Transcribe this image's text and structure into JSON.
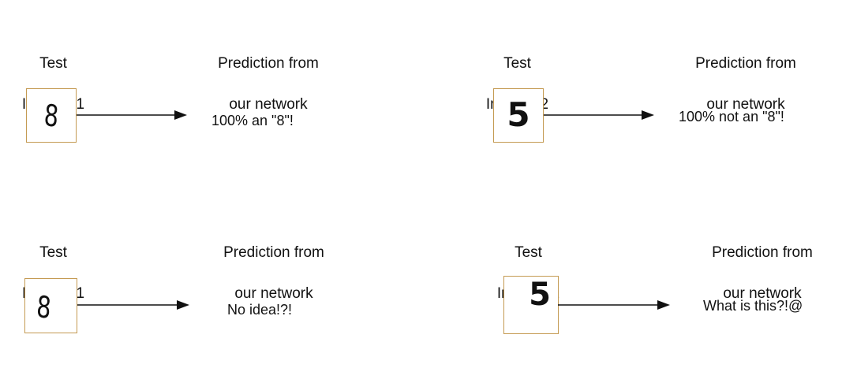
{
  "panels": [
    {
      "test_label": [
        "Test",
        "Image #1"
      ],
      "prediction_label": [
        "Prediction from",
        "our network"
      ],
      "digit": "8",
      "prediction": "100% an \"8\"!"
    },
    {
      "test_label": [
        "Test",
        "Image #2"
      ],
      "prediction_label": [
        "Prediction from",
        "our network"
      ],
      "digit": "5",
      "prediction": "100% not an  \"8\"!"
    },
    {
      "test_label": [
        "Test",
        "Image #1"
      ],
      "prediction_label": [
        "Prediction from",
        "our network"
      ],
      "digit": "8",
      "prediction": "No idea!?!"
    },
    {
      "test_label": [
        "Test",
        "Image #2"
      ],
      "prediction_label": [
        "Prediction from",
        "our network"
      ],
      "digit": "5",
      "prediction": "What is this?!@"
    }
  ]
}
